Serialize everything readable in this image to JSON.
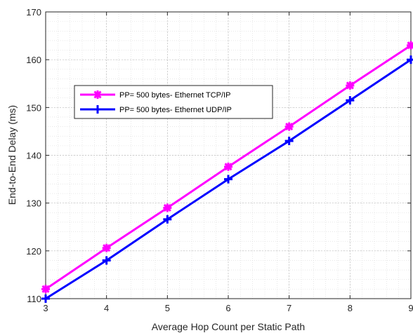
{
  "chart_data": {
    "type": "line",
    "title": "",
    "xlabel": "Average Hop Count per Static Path",
    "ylabel": "End-to-End Delay  (ms)",
    "xlim": [
      3,
      9
    ],
    "ylim": [
      110,
      170
    ],
    "x_ticks": [
      3,
      4,
      5,
      6,
      7,
      8,
      9
    ],
    "y_ticks": [
      110,
      120,
      130,
      140,
      150,
      160,
      170
    ],
    "grid": true,
    "minor_grid": true,
    "legend_placement": "upper-left inside",
    "x": [
      3,
      4,
      5,
      6,
      7,
      8,
      9
    ],
    "series": [
      {
        "name": "PP= 500 bytes- Ethernet TCP/IP",
        "color": "#ff00ff",
        "marker": "asterisk",
        "values": [
          112,
          120.6,
          129,
          137.6,
          146,
          154.6,
          163
        ]
      },
      {
        "name": "PP= 500 bytes- Ethernet UDP/IP",
        "color": "#0000ff",
        "marker": "plus",
        "values": [
          110,
          118,
          126.6,
          135,
          143,
          151.5,
          160
        ]
      }
    ]
  }
}
